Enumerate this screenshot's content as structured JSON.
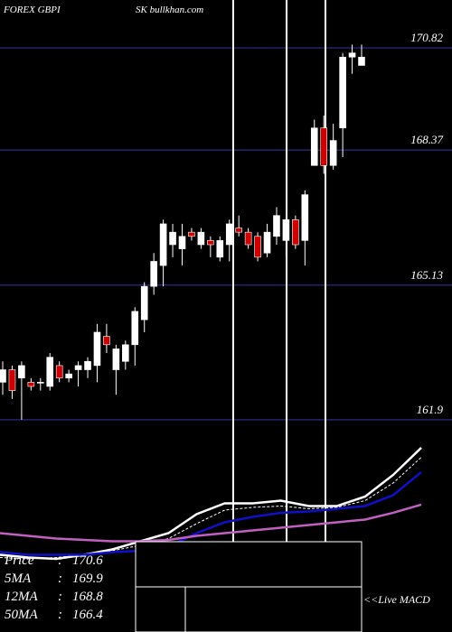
{
  "chart_data": [
    {
      "type": "candlestick",
      "title": "FOREX  GBPI",
      "subtitle": "SK bullkhan.com",
      "ylim": [
        161.79,
        171.97
      ],
      "yticks": [
        170.82,
        168.37,
        165.13,
        161.9
      ],
      "grid": true,
      "up_color": "#ffffff",
      "down_color": "#cc0000",
      "open": [
        162.8,
        163.1,
        162.9,
        162.8,
        162.8,
        162.7,
        163.2,
        162.9,
        163.1,
        163.1,
        163.2,
        163.9,
        163.1,
        163.3,
        163.7,
        164.3,
        165.1,
        165.6,
        166.1,
        166.0,
        166.4,
        166.1,
        166.2,
        165.8,
        166.1,
        166.5,
        166.4,
        166.3,
        165.9,
        166.3,
        166.2,
        166.7,
        166.2,
        168.0,
        168.9,
        168.0,
        168.9,
        170.6,
        170.4
      ],
      "high": [
        163.3,
        163.2,
        163.3,
        162.9,
        162.9,
        163.5,
        163.3,
        163.1,
        163.3,
        163.4,
        164.2,
        164.2,
        163.7,
        163.8,
        164.6,
        165.2,
        165.9,
        166.7,
        166.6,
        166.6,
        166.5,
        166.5,
        166.3,
        166.3,
        166.7,
        166.8,
        166.5,
        166.4,
        166.6,
        167.0,
        166.8,
        166.8,
        167.4,
        169.1,
        169.2,
        169.0,
        170.7,
        170.9,
        170.9
      ],
      "low": [
        162.5,
        162.4,
        161.9,
        162.6,
        162.6,
        162.6,
        162.8,
        162.8,
        162.7,
        162.9,
        162.8,
        163.5,
        162.5,
        163.1,
        163.2,
        164.0,
        164.9,
        165.1,
        165.8,
        165.6,
        166.2,
        166.0,
        165.8,
        165.7,
        165.7,
        166.3,
        166.0,
        165.7,
        165.8,
        166.1,
        165.8,
        166.0,
        165.6,
        168.0,
        167.8,
        167.9,
        168.2,
        170.2,
        170.4
      ],
      "close": [
        163.1,
        162.6,
        163.2,
        162.7,
        162.8,
        163.4,
        162.9,
        163.0,
        163.2,
        163.3,
        164.0,
        163.7,
        163.6,
        163.7,
        164.5,
        165.1,
        165.7,
        166.6,
        166.4,
        166.3,
        166.3,
        166.4,
        166.1,
        166.2,
        166.6,
        166.4,
        166.1,
        165.8,
        166.4,
        166.8,
        166.7,
        166.1,
        167.3,
        168.9,
        168.0,
        168.6,
        170.6,
        170.7,
        170.6
      ]
    },
    {
      "type": "line",
      "ylim": [
        157.0,
        172.33
      ],
      "separator": ":",
      "note": "<<Live MACD",
      "series": [
        {
          "name": "Price",
          "color": "#ffffff",
          "last": 170.6,
          "values": [
            162.7,
            162.5,
            162.4,
            162.7,
            163.1,
            163.7,
            164.3,
            165.7,
            166.5,
            166.5,
            166.7,
            166.3,
            166.3,
            167.0,
            168.6,
            170.6
          ]
        },
        {
          "name": "5MA",
          "color": "#ffffff",
          "dashed": true,
          "last": 169.9,
          "values": [
            162.5,
            162.4,
            162.5,
            162.7,
            163.0,
            163.4,
            163.9,
            165.0,
            166.0,
            166.2,
            166.3,
            166.1,
            166.2,
            166.7,
            168.0,
            169.9
          ]
        },
        {
          "name": "12MA",
          "color": "#1010c8",
          "last": 168.8,
          "values": [
            162.9,
            162.7,
            162.7,
            162.7,
            162.9,
            163.0,
            163.3,
            164.3,
            165.1,
            165.5,
            165.8,
            165.9,
            166.1,
            166.3,
            167.1,
            168.8
          ]
        },
        {
          "name": "50MA",
          "color": "#c060c0",
          "last": 166.4,
          "values": [
            164.3,
            164.1,
            163.9,
            163.8,
            163.7,
            163.7,
            163.8,
            164.1,
            164.3,
            164.5,
            164.7,
            164.9,
            165.1,
            165.3,
            165.8,
            166.4
          ]
        }
      ]
    }
  ]
}
